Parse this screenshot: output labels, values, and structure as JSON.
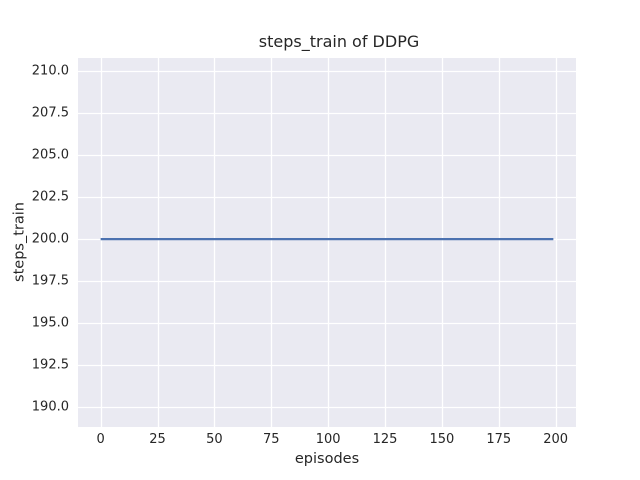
{
  "chart_data": {
    "type": "line",
    "title": "steps_train of DDPG",
    "xlabel": "episodes",
    "ylabel": "steps_train",
    "xlim": [
      -9.95,
      208.95
    ],
    "ylim": [
      188.8,
      210.8
    ],
    "xticks": [
      0,
      25,
      50,
      75,
      100,
      125,
      150,
      175,
      200
    ],
    "xtick_labels": [
      "0",
      "25",
      "50",
      "75",
      "100",
      "125",
      "150",
      "175",
      "200"
    ],
    "yticks": [
      190,
      192.5,
      195,
      197.5,
      200,
      202.5,
      205,
      207.5,
      210
    ],
    "ytick_labels": [
      "190.0",
      "192.5",
      "195.0",
      "197.5",
      "200.0",
      "202.5",
      "205.0",
      "207.5",
      "210.0"
    ],
    "grid": true,
    "legend": false,
    "series": [
      {
        "name": "steps_train",
        "x": [
          0,
          199
        ],
        "y": [
          200,
          200
        ],
        "color": "#4C72B0",
        "linewidth": 2.2
      }
    ],
    "colors": {
      "figure_background": "#FFFFFF",
      "plot_background": "#EAEAF2",
      "grid": "#FFFFFF",
      "text": "#262626"
    }
  }
}
